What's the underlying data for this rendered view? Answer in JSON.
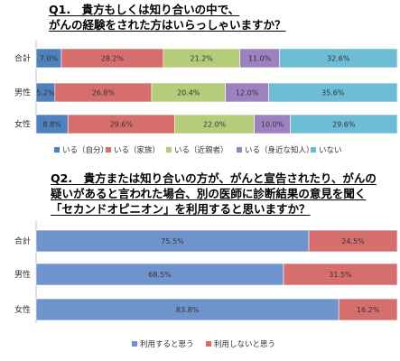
{
  "chart_data": [
    {
      "type": "bar",
      "orientation": "horizontal",
      "stacked": true,
      "title_lines": [
        "Q1.　貴方もしくは知り合いの中で、",
        "がんの経験をされた方はいらっしゃいますか？"
      ],
      "categories": [
        "合計",
        "男性",
        "女性"
      ],
      "series": [
        {
          "name": "いる（自分）",
          "color": "#4f81bd",
          "values": [
            7.0,
            5.2,
            8.8
          ],
          "labels": [
            "7.0%",
            "5.2%",
            "8.8%"
          ]
        },
        {
          "name": "いる（家族）",
          "color": "#d66e6e",
          "values": [
            28.2,
            26.8,
            29.6
          ],
          "labels": [
            "28.2%",
            "26.8%",
            "29.6%"
          ]
        },
        {
          "name": "いる（近親者）",
          "color": "#b5cc7a",
          "values": [
            21.2,
            20.4,
            22.0
          ],
          "labels": [
            "21.2%",
            "20.4%",
            "22.0%"
          ]
        },
        {
          "name": "いる（身近な知人）",
          "color": "#9c82c0",
          "values": [
            11.0,
            12.0,
            10.0
          ],
          "labels": [
            "11.0%",
            "12.0%",
            "10.0%"
          ]
        },
        {
          "name": "いない",
          "color": "#6dbdd4",
          "values": [
            32.6,
            35.6,
            29.6
          ],
          "labels": [
            "32.6%",
            "35.6%",
            "29.6%"
          ]
        }
      ],
      "xlim": [
        0,
        100
      ],
      "legend_position": "bottom"
    },
    {
      "type": "bar",
      "orientation": "horizontal",
      "stacked": true,
      "title_lines": [
        "Q2.　貴方または知り合いの方が、がんと宣告されたり、がんの",
        "疑いがあると言われた場合、別の医師に診断結果の意見を聞く",
        "「セカンドオピニオン」を利用すると思いますか？"
      ],
      "categories": [
        "合計",
        "男性",
        "女性"
      ],
      "series": [
        {
          "name": "利用すると思う",
          "color": "#6f93cc",
          "values": [
            75.5,
            68.5,
            83.8
          ],
          "labels": [
            "75.5%",
            "68.5%",
            "83.8%"
          ]
        },
        {
          "name": "利用しないと思う",
          "color": "#d66e6e",
          "values": [
            24.5,
            31.5,
            16.2
          ],
          "labels": [
            "24.5%",
            "31.5%",
            "16.2%"
          ]
        }
      ],
      "xlim": [
        0,
        100
      ],
      "legend_position": "bottom"
    }
  ]
}
